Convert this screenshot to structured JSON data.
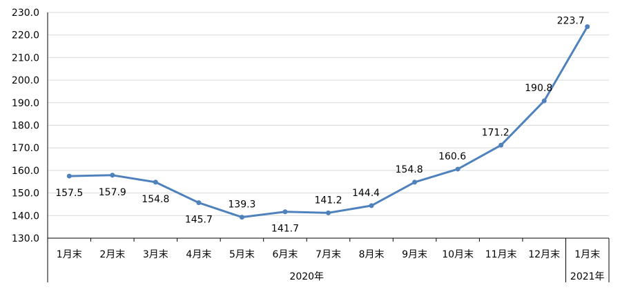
{
  "chart_data": {
    "type": "line",
    "title": "",
    "xlabel": "",
    "ylabel": "",
    "categories": [
      "1月末",
      "2月末",
      "3月末",
      "4月末",
      "5月末",
      "6月末",
      "7月末",
      "8月末",
      "9月末",
      "10月末",
      "11月末",
      "12月末",
      "1月末"
    ],
    "groups": [
      {
        "label": "2020年",
        "count": 12
      },
      {
        "label": "2021年",
        "count": 1
      }
    ],
    "series": [
      {
        "values": [
          157.5,
          157.9,
          154.8,
          145.7,
          139.3,
          141.7,
          141.2,
          144.4,
          154.8,
          160.6,
          171.2,
          190.8,
          223.7
        ],
        "labels": [
          "157.5",
          "157.9",
          "154.8",
          "145.7",
          "139.3",
          "141.7",
          "141.2",
          "144.4",
          "154.8",
          "160.6",
          "171.2",
          "190.8",
          "223.7"
        ],
        "color": "#4f81bd"
      }
    ],
    "ylim": [
      130,
      230
    ],
    "yticks": [
      "130.0",
      "140.0",
      "150.0",
      "160.0",
      "170.0",
      "180.0",
      "190.0",
      "200.0",
      "210.0",
      "220.0",
      "230.0"
    ],
    "grid": true,
    "legend": "none"
  }
}
